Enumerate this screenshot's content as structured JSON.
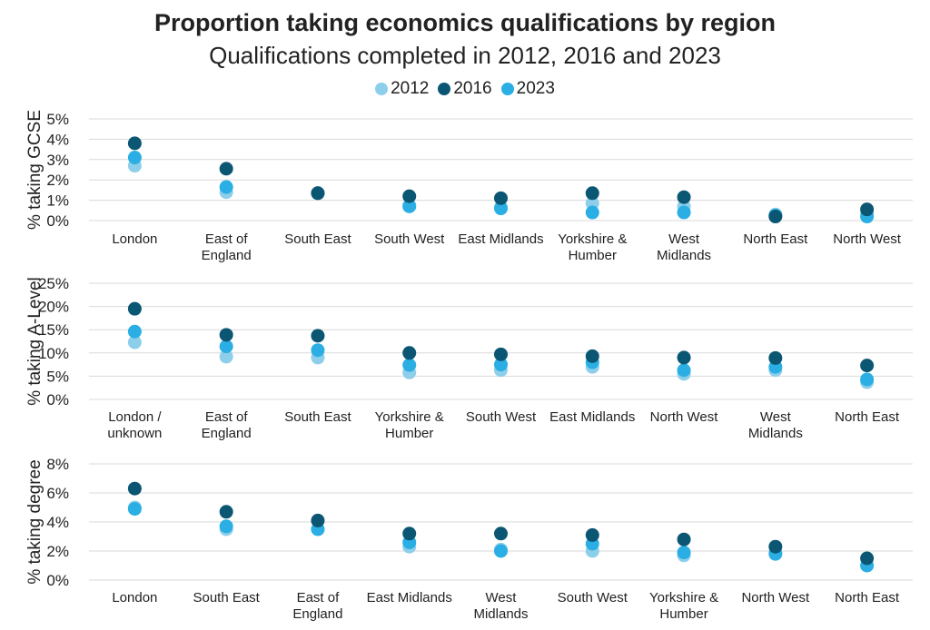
{
  "title": "Proportion taking economics qualifications by region",
  "subtitle": "Qualifications completed in 2012, 2016 and 2023",
  "legend": [
    {
      "label": "2012",
      "color": "#8dcfea"
    },
    {
      "label": "2016",
      "color": "#0b5673"
    },
    {
      "label": "2023",
      "color": "#2aaee3"
    }
  ],
  "chart_data": [
    {
      "type": "scatter",
      "ylabel": "% taking GCSE",
      "ylim": [
        0,
        5
      ],
      "yticks": [
        "0%",
        "1%",
        "2%",
        "3%",
        "4%",
        "5%"
      ],
      "categories": [
        [
          "London"
        ],
        [
          "East of",
          "England"
        ],
        [
          "South East"
        ],
        [
          "South West"
        ],
        [
          "East Midlands"
        ],
        [
          "Yorkshire &",
          "Humber"
        ],
        [
          "West",
          "Midlands"
        ],
        [
          "North East"
        ],
        [
          "North West"
        ]
      ],
      "series": [
        {
          "name": "2012",
          "values": [
            2.7,
            1.4,
            1.35,
            0.75,
            0.65,
            0.85,
            0.7,
            0.3,
            0.35
          ]
        },
        {
          "name": "2016",
          "values": [
            3.8,
            2.55,
            1.35,
            1.2,
            1.1,
            1.35,
            1.15,
            0.2,
            0.55
          ]
        },
        {
          "name": "2023",
          "values": [
            3.1,
            1.65,
            1.35,
            0.7,
            0.6,
            0.4,
            0.4,
            0.25,
            0.2
          ]
        }
      ],
      "grid": true
    },
    {
      "type": "scatter",
      "ylabel": "% taking A-Level",
      "ylim": [
        0,
        25
      ],
      "yticks": [
        "0%",
        "5%",
        "10%",
        "15%",
        "20%",
        "25%"
      ],
      "categories": [
        [
          "London /",
          "unknown"
        ],
        [
          "East of",
          "England"
        ],
        [
          "South East"
        ],
        [
          "Yorkshire &",
          "Humber"
        ],
        [
          "South West"
        ],
        [
          "East Midlands"
        ],
        [
          "North West"
        ],
        [
          "West",
          "Midlands"
        ],
        [
          "North East"
        ]
      ],
      "series": [
        {
          "name": "2012",
          "values": [
            12.3,
            9.2,
            9.0,
            5.8,
            6.3,
            7.0,
            5.5,
            6.3,
            3.7
          ]
        },
        {
          "name": "2016",
          "values": [
            19.5,
            13.9,
            13.7,
            10.0,
            9.7,
            9.3,
            9.0,
            8.9,
            7.3
          ]
        },
        {
          "name": "2023",
          "values": [
            14.6,
            11.4,
            10.6,
            7.4,
            7.5,
            8.0,
            6.3,
            7.0,
            4.3
          ]
        }
      ],
      "grid": true
    },
    {
      "type": "scatter",
      "ylabel": "% taking degree",
      "ylim": [
        0,
        8
      ],
      "yticks": [
        "0%",
        "2%",
        "4%",
        "6%",
        "8%"
      ],
      "categories": [
        [
          "London"
        ],
        [
          "South East"
        ],
        [
          "East of",
          "England"
        ],
        [
          "East Midlands"
        ],
        [
          "West",
          "Midlands"
        ],
        [
          "South West"
        ],
        [
          "Yorkshire &",
          "Humber"
        ],
        [
          "North West"
        ],
        [
          "North East"
        ]
      ],
      "series": [
        {
          "name": "2012",
          "values": [
            5.0,
            3.5,
            3.5,
            2.3,
            2.1,
            2.0,
            1.7,
            1.9,
            1.0
          ]
        },
        {
          "name": "2016",
          "values": [
            6.3,
            4.7,
            4.1,
            3.2,
            3.2,
            3.1,
            2.8,
            2.3,
            1.5
          ]
        },
        {
          "name": "2023",
          "values": [
            4.9,
            3.7,
            3.5,
            2.6,
            2.0,
            2.5,
            1.9,
            1.8,
            1.0
          ]
        }
      ],
      "grid": true
    }
  ]
}
